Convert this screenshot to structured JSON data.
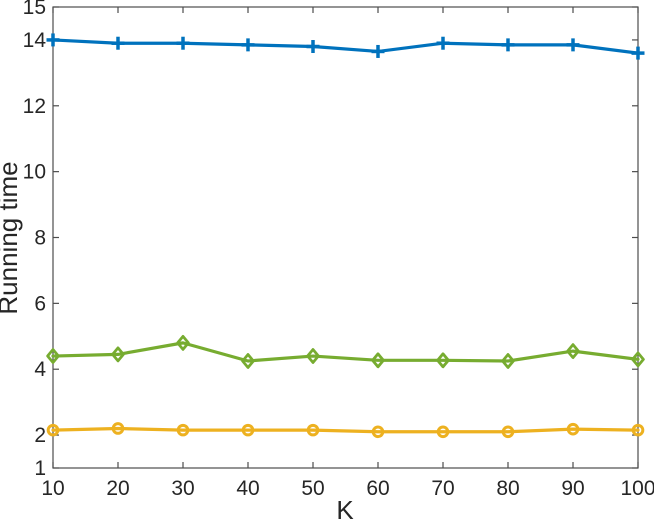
{
  "figure": {
    "background": "#ffffff",
    "axis_color": "#4d4d4d",
    "text_color": "#262626"
  },
  "chart_data": {
    "type": "line",
    "title": "",
    "xlabel": "K",
    "ylabel": "Running time",
    "xlim": [
      10,
      100
    ],
    "ylim": [
      1,
      15
    ],
    "xticks": [
      10,
      20,
      30,
      40,
      50,
      60,
      70,
      80,
      90,
      100
    ],
    "yticks": [
      1,
      2,
      4,
      6,
      8,
      10,
      12,
      14,
      15
    ],
    "grid": false,
    "box": true,
    "legend_position": "none",
    "x": [
      10,
      20,
      30,
      40,
      50,
      60,
      70,
      80,
      90,
      100
    ],
    "series": [
      {
        "name": "blue-plus-series",
        "marker": "plus",
        "color": "#0072BD",
        "values": [
          14.0,
          13.9,
          13.9,
          13.85,
          13.8,
          13.65,
          13.9,
          13.85,
          13.85,
          13.6
        ]
      },
      {
        "name": "green-diamond-series",
        "marker": "diamond",
        "color": "#77AC30",
        "values": [
          4.4,
          4.45,
          4.8,
          4.25,
          4.4,
          4.27,
          4.27,
          4.25,
          4.55,
          4.3
        ]
      },
      {
        "name": "orange-circle-series",
        "marker": "circle",
        "color": "#EDB120",
        "values": [
          2.15,
          2.2,
          2.15,
          2.15,
          2.15,
          2.1,
          2.1,
          2.1,
          2.18,
          2.15
        ]
      }
    ]
  }
}
